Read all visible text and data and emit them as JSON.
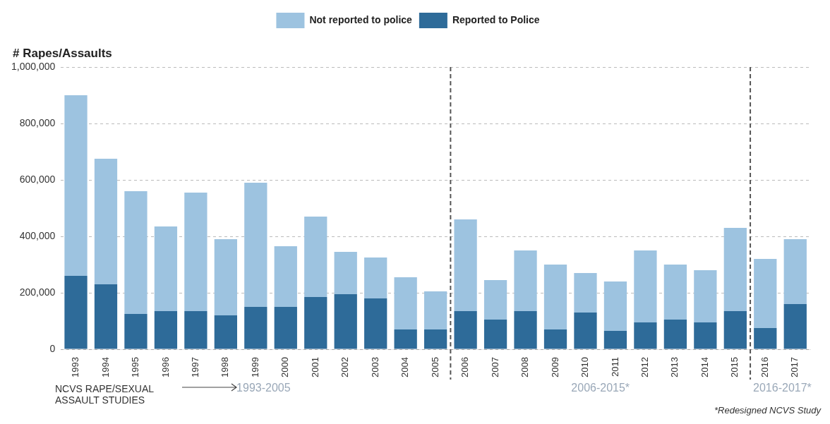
{
  "chart_data": {
    "type": "bar",
    "stacked": true,
    "ylabel": "# Rapes/Assaults",
    "categories": [
      "1993",
      "1994",
      "1995",
      "1996",
      "1997",
      "1998",
      "1999",
      "2000",
      "2001",
      "2002",
      "2003",
      "2004",
      "2005",
      "2006",
      "2007",
      "2008",
      "2009",
      "2010",
      "2011",
      "2012",
      "2013",
      "2014",
      "2015",
      "2016",
      "2017"
    ],
    "series": [
      {
        "name": "Reported to Police",
        "color": "#2e6b99",
        "values": [
          260000,
          230000,
          125000,
          135000,
          135000,
          120000,
          150000,
          150000,
          185000,
          195000,
          180000,
          70000,
          70000,
          135000,
          105000,
          135000,
          70000,
          130000,
          65000,
          95000,
          105000,
          95000,
          135000,
          75000,
          160000
        ]
      },
      {
        "name": "Not reported to police",
        "color": "#9dc3e0",
        "values": [
          640000,
          445000,
          435000,
          300000,
          420000,
          270000,
          440000,
          215000,
          285000,
          150000,
          145000,
          185000,
          135000,
          325000,
          140000,
          215000,
          230000,
          140000,
          175000,
          255000,
          195000,
          185000,
          295000,
          245000,
          230000
        ]
      }
    ],
    "ylim": [
      0,
      1000000
    ],
    "yticks": [
      0,
      {
        "value": 200000,
        "label": "200,000"
      },
      {
        "value": 400000,
        "label": "400,000"
      },
      {
        "value": 600000,
        "label": "600,000"
      },
      {
        "value": 800000,
        "label": "800,000"
      },
      {
        "value": 1000000,
        "label": "1,000,000"
      }
    ],
    "grid": "y",
    "legend": "top",
    "annotations": [
      "NCVS RAPE/SEXUAL ASSAULT STUDIES",
      "1993-2005",
      "2006-2015*",
      "2016-2017*",
      "*Redesigned NCVS Study"
    ]
  }
}
